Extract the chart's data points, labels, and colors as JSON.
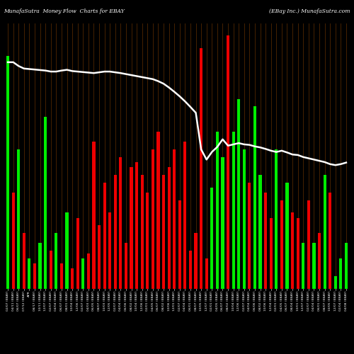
{
  "title_left": "MunafaSutra  Money Flow  Charts for EBAY",
  "title_right": "(EBay Inc.) MunafaSutra.com",
  "background_color": "#000000",
  "bar_color_pos": "#00EE00",
  "bar_color_neg": "#EE0000",
  "grid_color": "#6B3300",
  "line_color": "#FFFFFF",
  "bars": [
    {
      "v": 0.92,
      "c": 1
    },
    {
      "v": 0.38,
      "c": 0
    },
    {
      "v": 0.55,
      "c": 1
    },
    {
      "v": 0.22,
      "c": 0
    },
    {
      "v": 0.12,
      "c": 1
    },
    {
      "v": 0.1,
      "c": 0
    },
    {
      "v": 0.18,
      "c": 1
    },
    {
      "v": 0.68,
      "c": 1
    },
    {
      "v": 0.15,
      "c": 0
    },
    {
      "v": 0.22,
      "c": 1
    },
    {
      "v": 0.1,
      "c": 0
    },
    {
      "v": 0.3,
      "c": 1
    },
    {
      "v": 0.08,
      "c": 0
    },
    {
      "v": 0.28,
      "c": 0
    },
    {
      "v": 0.12,
      "c": 1
    },
    {
      "v": 0.14,
      "c": 0
    },
    {
      "v": 0.58,
      "c": 0
    },
    {
      "v": 0.25,
      "c": 0
    },
    {
      "v": 0.42,
      "c": 0
    },
    {
      "v": 0.3,
      "c": 0
    },
    {
      "v": 0.45,
      "c": 0
    },
    {
      "v": 0.52,
      "c": 0
    },
    {
      "v": 0.18,
      "c": 0
    },
    {
      "v": 0.48,
      "c": 0
    },
    {
      "v": 0.5,
      "c": 0
    },
    {
      "v": 0.45,
      "c": 0
    },
    {
      "v": 0.38,
      "c": 0
    },
    {
      "v": 0.55,
      "c": 0
    },
    {
      "v": 0.62,
      "c": 0
    },
    {
      "v": 0.45,
      "c": 0
    },
    {
      "v": 0.48,
      "c": 0
    },
    {
      "v": 0.55,
      "c": 0
    },
    {
      "v": 0.35,
      "c": 0
    },
    {
      "v": 0.58,
      "c": 0
    },
    {
      "v": 0.15,
      "c": 0
    },
    {
      "v": 0.22,
      "c": 0
    },
    {
      "v": 0.95,
      "c": 0
    },
    {
      "v": 0.12,
      "c": 0
    },
    {
      "v": 0.4,
      "c": 1
    },
    {
      "v": 0.62,
      "c": 1
    },
    {
      "v": 0.52,
      "c": 1
    },
    {
      "v": 1.0,
      "c": 0
    },
    {
      "v": 0.62,
      "c": 1
    },
    {
      "v": 0.75,
      "c": 1
    },
    {
      "v": 0.55,
      "c": 1
    },
    {
      "v": 0.42,
      "c": 0
    },
    {
      "v": 0.72,
      "c": 1
    },
    {
      "v": 0.45,
      "c": 1
    },
    {
      "v": 0.38,
      "c": 0
    },
    {
      "v": 0.28,
      "c": 0
    },
    {
      "v": 0.55,
      "c": 1
    },
    {
      "v": 0.35,
      "c": 0
    },
    {
      "v": 0.42,
      "c": 1
    },
    {
      "v": 0.3,
      "c": 0
    },
    {
      "v": 0.28,
      "c": 0
    },
    {
      "v": 0.18,
      "c": 1
    },
    {
      "v": 0.35,
      "c": 0
    },
    {
      "v": 0.18,
      "c": 1
    },
    {
      "v": 0.22,
      "c": 0
    },
    {
      "v": 0.45,
      "c": 1
    },
    {
      "v": 0.38,
      "c": 0
    },
    {
      "v": 0.05,
      "c": 1
    },
    {
      "v": 0.12,
      "c": 1
    },
    {
      "v": 0.18,
      "c": 1
    }
  ],
  "line_values": [
    0.895,
    0.895,
    0.88,
    0.87,
    0.868,
    0.866,
    0.864,
    0.862,
    0.858,
    0.858,
    0.862,
    0.865,
    0.86,
    0.858,
    0.856,
    0.854,
    0.852,
    0.855,
    0.858,
    0.858,
    0.855,
    0.852,
    0.848,
    0.844,
    0.84,
    0.836,
    0.832,
    0.828,
    0.82,
    0.81,
    0.795,
    0.778,
    0.76,
    0.74,
    0.718,
    0.695,
    0.55,
    0.51,
    0.54,
    0.56,
    0.59,
    0.565,
    0.57,
    0.575,
    0.57,
    0.568,
    0.562,
    0.558,
    0.552,
    0.545,
    0.54,
    0.545,
    0.538,
    0.53,
    0.528,
    0.52,
    0.515,
    0.51,
    0.505,
    0.5,
    0.492,
    0.488,
    0.492,
    0.498
  ],
  "labels": [
    "02/07 (EBAY)",
    "04/11 (EBAY)",
    "06/07 (EBAY)",
    "07/12 (EBAY)",
    "APR",
    "08/17 (EBAY)",
    "10/11 (EBAY)",
    "12/07 (EBAY)",
    "02/07 (EBAY)",
    "04/04 (EBAY)",
    "06/07 (EBAY)",
    "08/01 (EBAY)",
    "10/04 (EBAY)",
    "12/06 (EBAY)",
    "02/07 (EBAY)",
    "04/03 (EBAY)",
    "06/05 (EBAY)",
    "08/07 (EBAY)",
    "10/03 (EBAY)",
    "12/05 (EBAY)",
    "02/07 (EBAY)",
    "04/04 (EBAY)",
    "06/06 (EBAY)",
    "08/02 (EBAY)",
    "10/04 (EBAY)",
    "12/06 (EBAY)",
    "02/01 (EBAY)",
    "04/05 (EBAY)",
    "06/07 (EBAY)",
    "08/02 (EBAY)",
    "10/06 (EBAY)",
    "12/01 (EBAY)",
    "02/07 (EBAY)",
    "04/04 (EBAY)",
    "06/01 (EBAY)",
    "08/07 (EBAY)",
    "10/05 (EBAY)",
    "12/07 (EBAY)",
    "02/01 (EBAY)",
    "04/05 (EBAY)",
    "06/07 (EBAY)",
    "08/02 (EBAY)",
    "10/04 (EBAY)",
    "12/06 (EBAY)",
    "02/07 (EBAY)",
    "04/04 (EBAY)",
    "06/06 (EBAY)",
    "08/02 (EBAY)",
    "10/06 (EBAY)",
    "12/04 (EBAY)",
    "02/01 (EBAY)",
    "04/05 (EBAY)",
    "06/07 (EBAY)",
    "08/04 (EBAY)",
    "10/01 (EBAY)",
    "12/07 (EBAY)",
    "02/07 (EBAY)",
    "04/04 (EBAY)",
    "06/01 (EBAY)",
    "08/07 (EBAY)",
    "10/05 (EBAY)",
    "12/07 (EBAY)",
    "02/04 (EBAY)",
    "04/08 (EBAY)"
  ],
  "ylim": [
    0.0,
    1.05
  ],
  "figsize": [
    5.0,
    5.0
  ],
  "dpi": 100
}
